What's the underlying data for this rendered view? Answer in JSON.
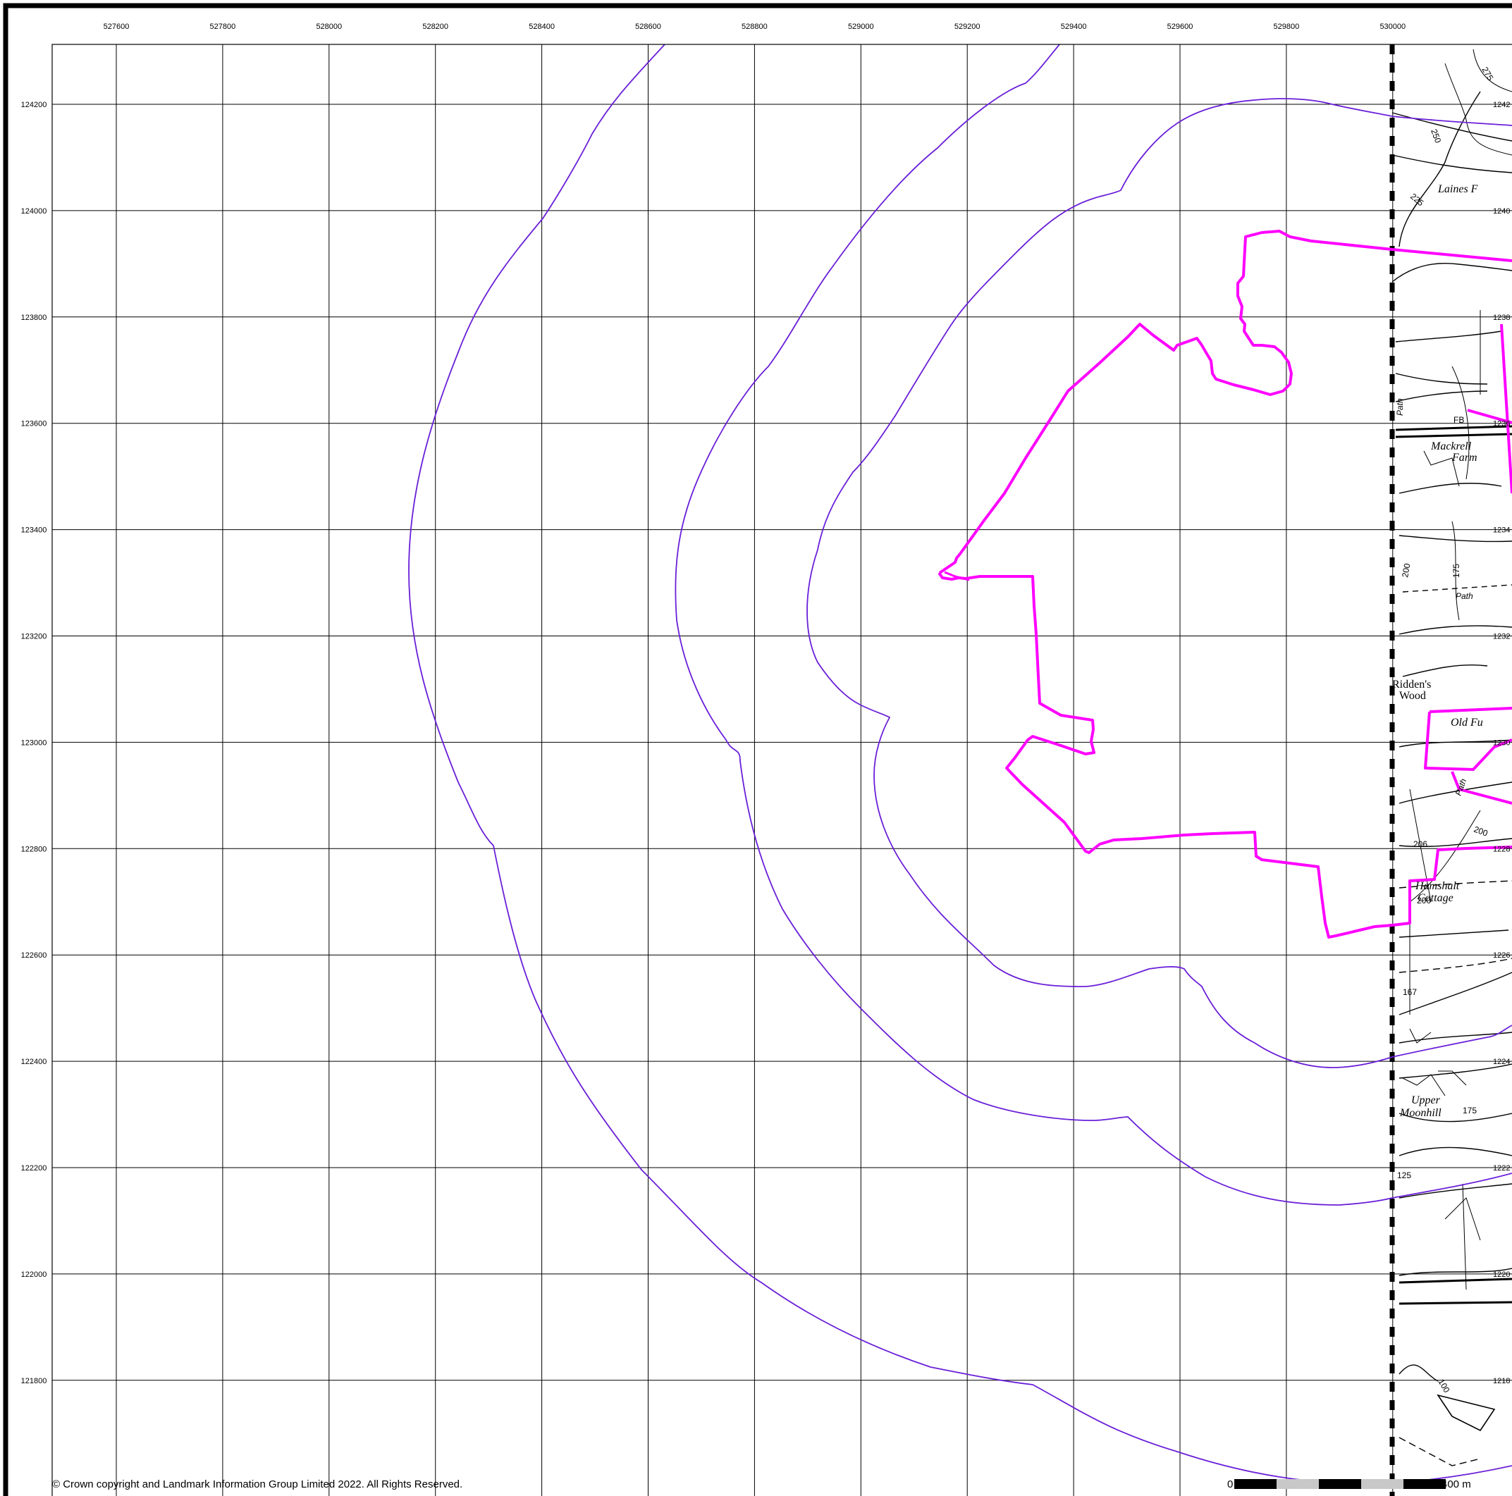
{
  "map": {
    "easting_ticks": [
      "527600",
      "527800",
      "528000",
      "528200",
      "528400",
      "528600",
      "528800",
      "529000",
      "529200",
      "529400",
      "529600",
      "529800",
      "530000"
    ],
    "northing_ticks": [
      "124200",
      "124000",
      "123800",
      "123600",
      "123400",
      "123200",
      "123000",
      "122800",
      "122600",
      "122400",
      "122200",
      "122000",
      "121800"
    ],
    "right_northing_ticks": [
      "1242",
      "1240",
      "1238",
      "1236",
      "1234",
      "1232",
      "1230",
      "1228",
      "1226",
      "1224",
      "1222",
      "1220",
      "1218"
    ],
    "place_labels": [
      "Laines F",
      "Mackrell",
      "Farm",
      "Ridden's",
      "Wood",
      "Old Fu",
      "Hamshalt",
      "Cottage",
      "Upper",
      "Moonhill"
    ],
    "feature_labels": [
      "Path",
      "Path",
      "Path",
      "FB"
    ],
    "contour_labels": [
      "225",
      "250",
      "275",
      "200",
      "175",
      "200",
      "206",
      "200",
      "167",
      "175",
      "125",
      "100"
    ],
    "copyright": "© Crown copyright and Landmark Information Group Limited 2022.  All Rights Reserved.",
    "scale_bar": {
      "start_label": "0",
      "end_label": "400 m"
    },
    "colors": {
      "buffer_lines": "#6a1fd8",
      "site_boundary": "#ff00ff",
      "grid": "#000000",
      "tile_edge": "#000000"
    }
  }
}
